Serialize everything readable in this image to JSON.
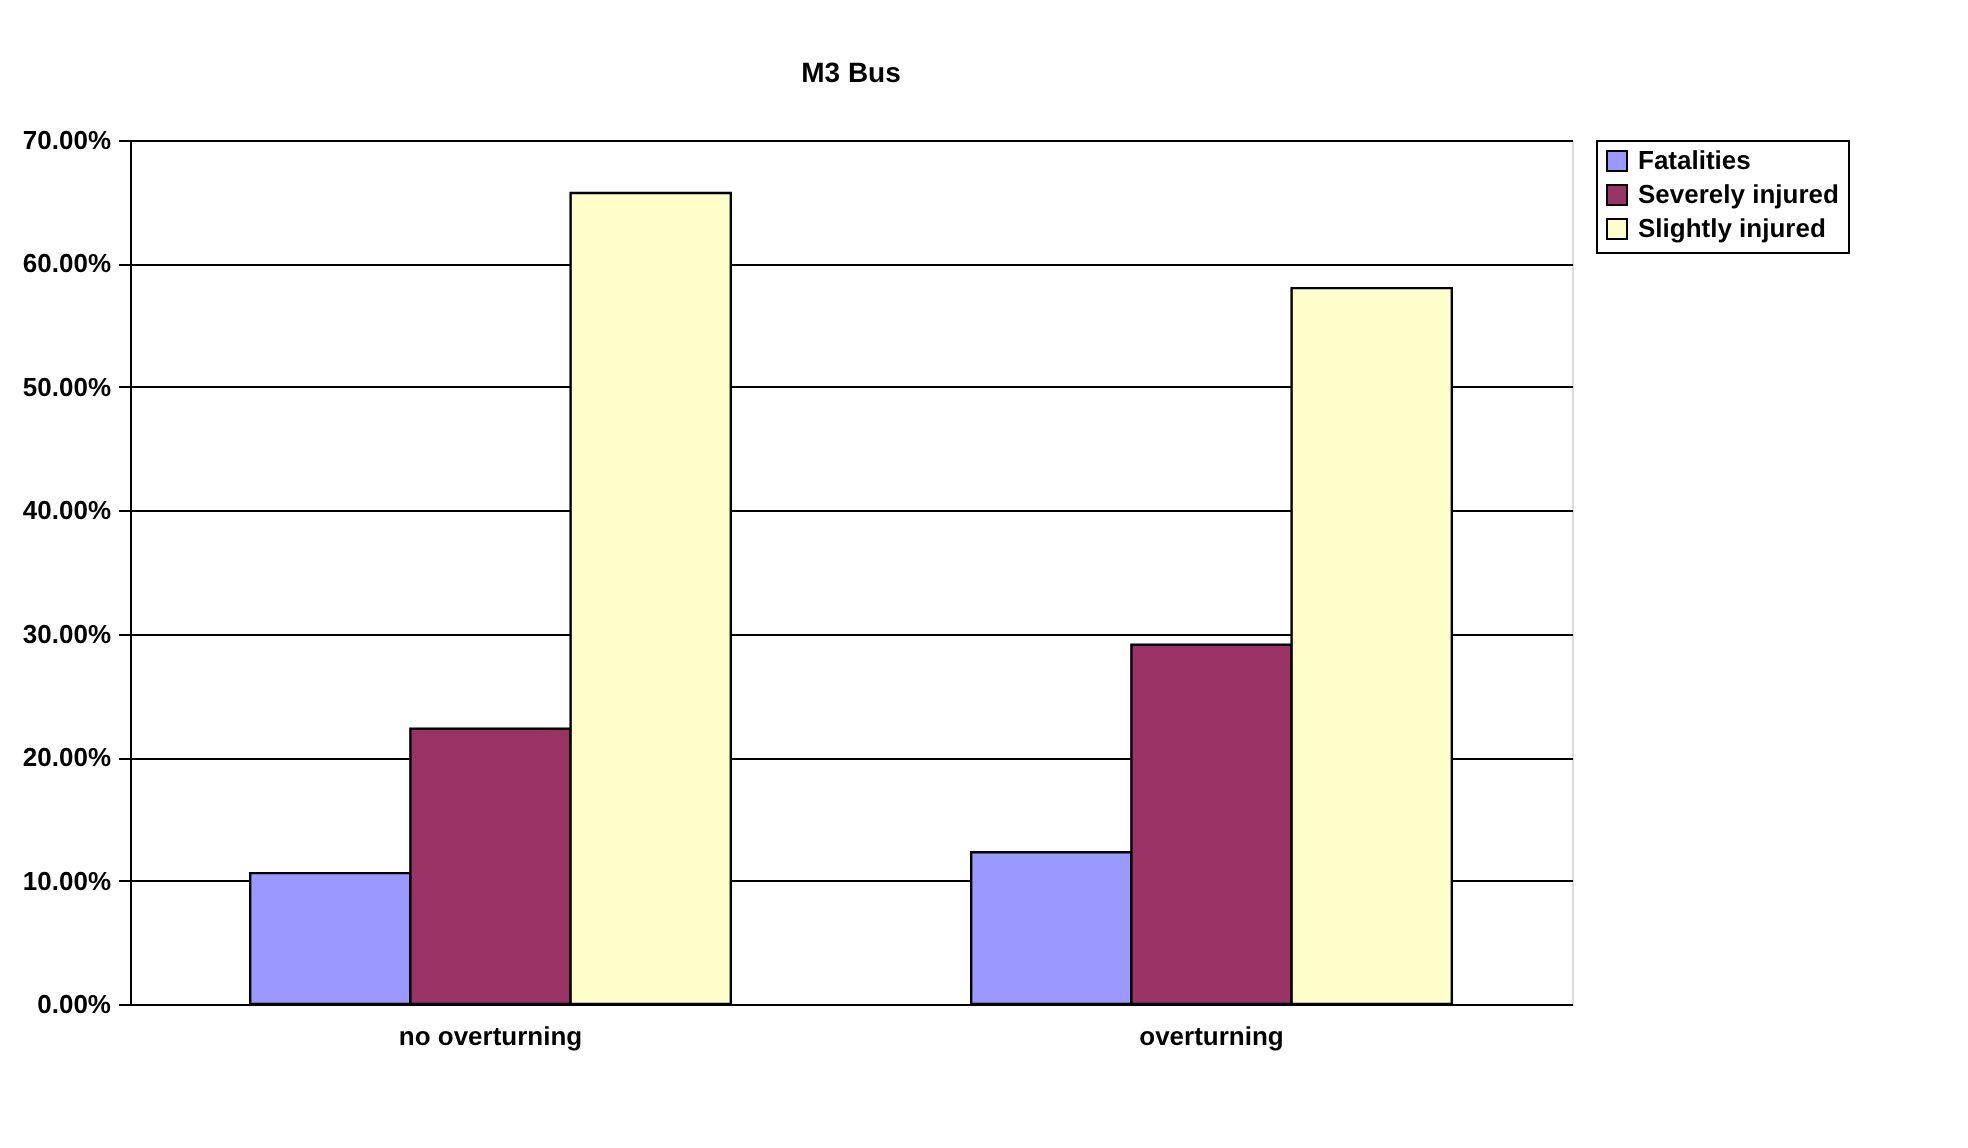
{
  "chart_data": {
    "type": "bar",
    "title": "M3 Bus",
    "categories": [
      "no overturning",
      "overturning"
    ],
    "series": [
      {
        "name": "Fatalities",
        "color": "#9999ff",
        "values": [
          10.6,
          12.3
        ]
      },
      {
        "name": "Severely injured",
        "color": "#993366",
        "values": [
          22.3,
          29.1
        ]
      },
      {
        "name": "Slightly injured",
        "color": "#ffffcc",
        "values": [
          65.7,
          58.0
        ]
      }
    ],
    "ylim": [
      0,
      70
    ],
    "yticks": [
      {
        "value": 0,
        "label": "0.00%"
      },
      {
        "value": 10,
        "label": "10.00%"
      },
      {
        "value": 20,
        "label": "20.00%"
      },
      {
        "value": 30,
        "label": "30.00%"
      },
      {
        "value": 40,
        "label": "40.00%"
      },
      {
        "value": 50,
        "label": "50.00%"
      },
      {
        "value": 60,
        "label": "60.00%"
      },
      {
        "value": 70,
        "label": "70.00%"
      }
    ],
    "grid": "y",
    "legend": "right"
  }
}
